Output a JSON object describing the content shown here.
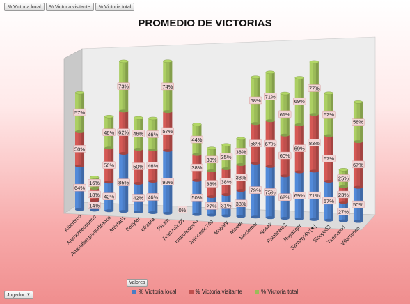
{
  "field_buttons": [
    "% Victoria local",
    "% Victoria visitante",
    "% Victoria total"
  ],
  "axis_field_button": "Jugador",
  "values_button": "Valores",
  "colors": {
    "local": "#4a7cc4",
    "visitante": "#c0504d",
    "total": "#9bbb59",
    "label_bg": "#f2d7d7"
  },
  "chart_data": {
    "type": "bar",
    "stacked": true,
    "three_d": true,
    "title": "PROMEDIO DE VICTORIAS",
    "ylim": [
      0,
      230
    ],
    "categories": [
      "Albertsbd",
      "Anahernesbueno",
      "Anaisabel.pastorblanco",
      "Artista61",
      "Bettyfar",
      "elkabra",
      "Fili.xin",
      "Fran.ruiz.55",
      "Isidroantes54",
      "Julincedk.740",
      "Magary",
      "Maiete",
      "Meclemar",
      "Nosek",
      "Palabrero2",
      "Rayazgar",
      "Sammyvbc[★]",
      "Sloope63",
      "Txemamd",
      "Villarrense"
    ],
    "series": [
      {
        "name": "% Victoria local",
        "values": [
          64,
          14,
          42,
          85,
          42,
          46,
          92,
          0,
          50,
          27,
          31,
          38,
          79,
          75,
          62,
          69,
          71,
          57,
          27,
          50
        ]
      },
      {
        "name": "% Victoria visitante",
        "values": [
          50,
          18,
          50,
          62,
          50,
          46,
          57,
          0,
          38,
          38,
          38,
          38,
          58,
          67,
          60,
          69,
          83,
          67,
          23,
          67
        ]
      },
      {
        "name": "% Victoria total",
        "values": [
          57,
          16,
          46,
          73,
          46,
          46,
          74,
          0,
          44,
          33,
          35,
          38,
          68,
          71,
          61,
          69,
          77,
          62,
          25,
          58
        ]
      }
    ],
    "data_labels": [
      [
        "64%",
        "14%",
        "42%",
        "85%",
        "42%",
        "46%",
        "92%",
        "0%",
        "50%",
        "27%",
        "31%",
        "38%",
        "79%",
        "75%",
        "62%",
        "69%",
        "71%",
        "57%",
        "27%",
        "50%"
      ],
      [
        "50%",
        "18%",
        "50%",
        "62%",
        "50%",
        "46%",
        "57%",
        "",
        "38%",
        "38%",
        "38%",
        "38%",
        "58%",
        "67%",
        "60%",
        "69%",
        "83%",
        "67%",
        "23%",
        "67%"
      ],
      [
        "57%",
        "16%",
        "46%",
        "73%",
        "46%",
        "46%",
        "74%",
        "",
        "44%",
        "33%",
        "35%",
        "38%",
        "68%",
        "71%",
        "61%",
        "69%",
        "77%",
        "62%",
        "25%",
        "58%"
      ]
    ],
    "grid": false,
    "legend_position": "bottom"
  }
}
